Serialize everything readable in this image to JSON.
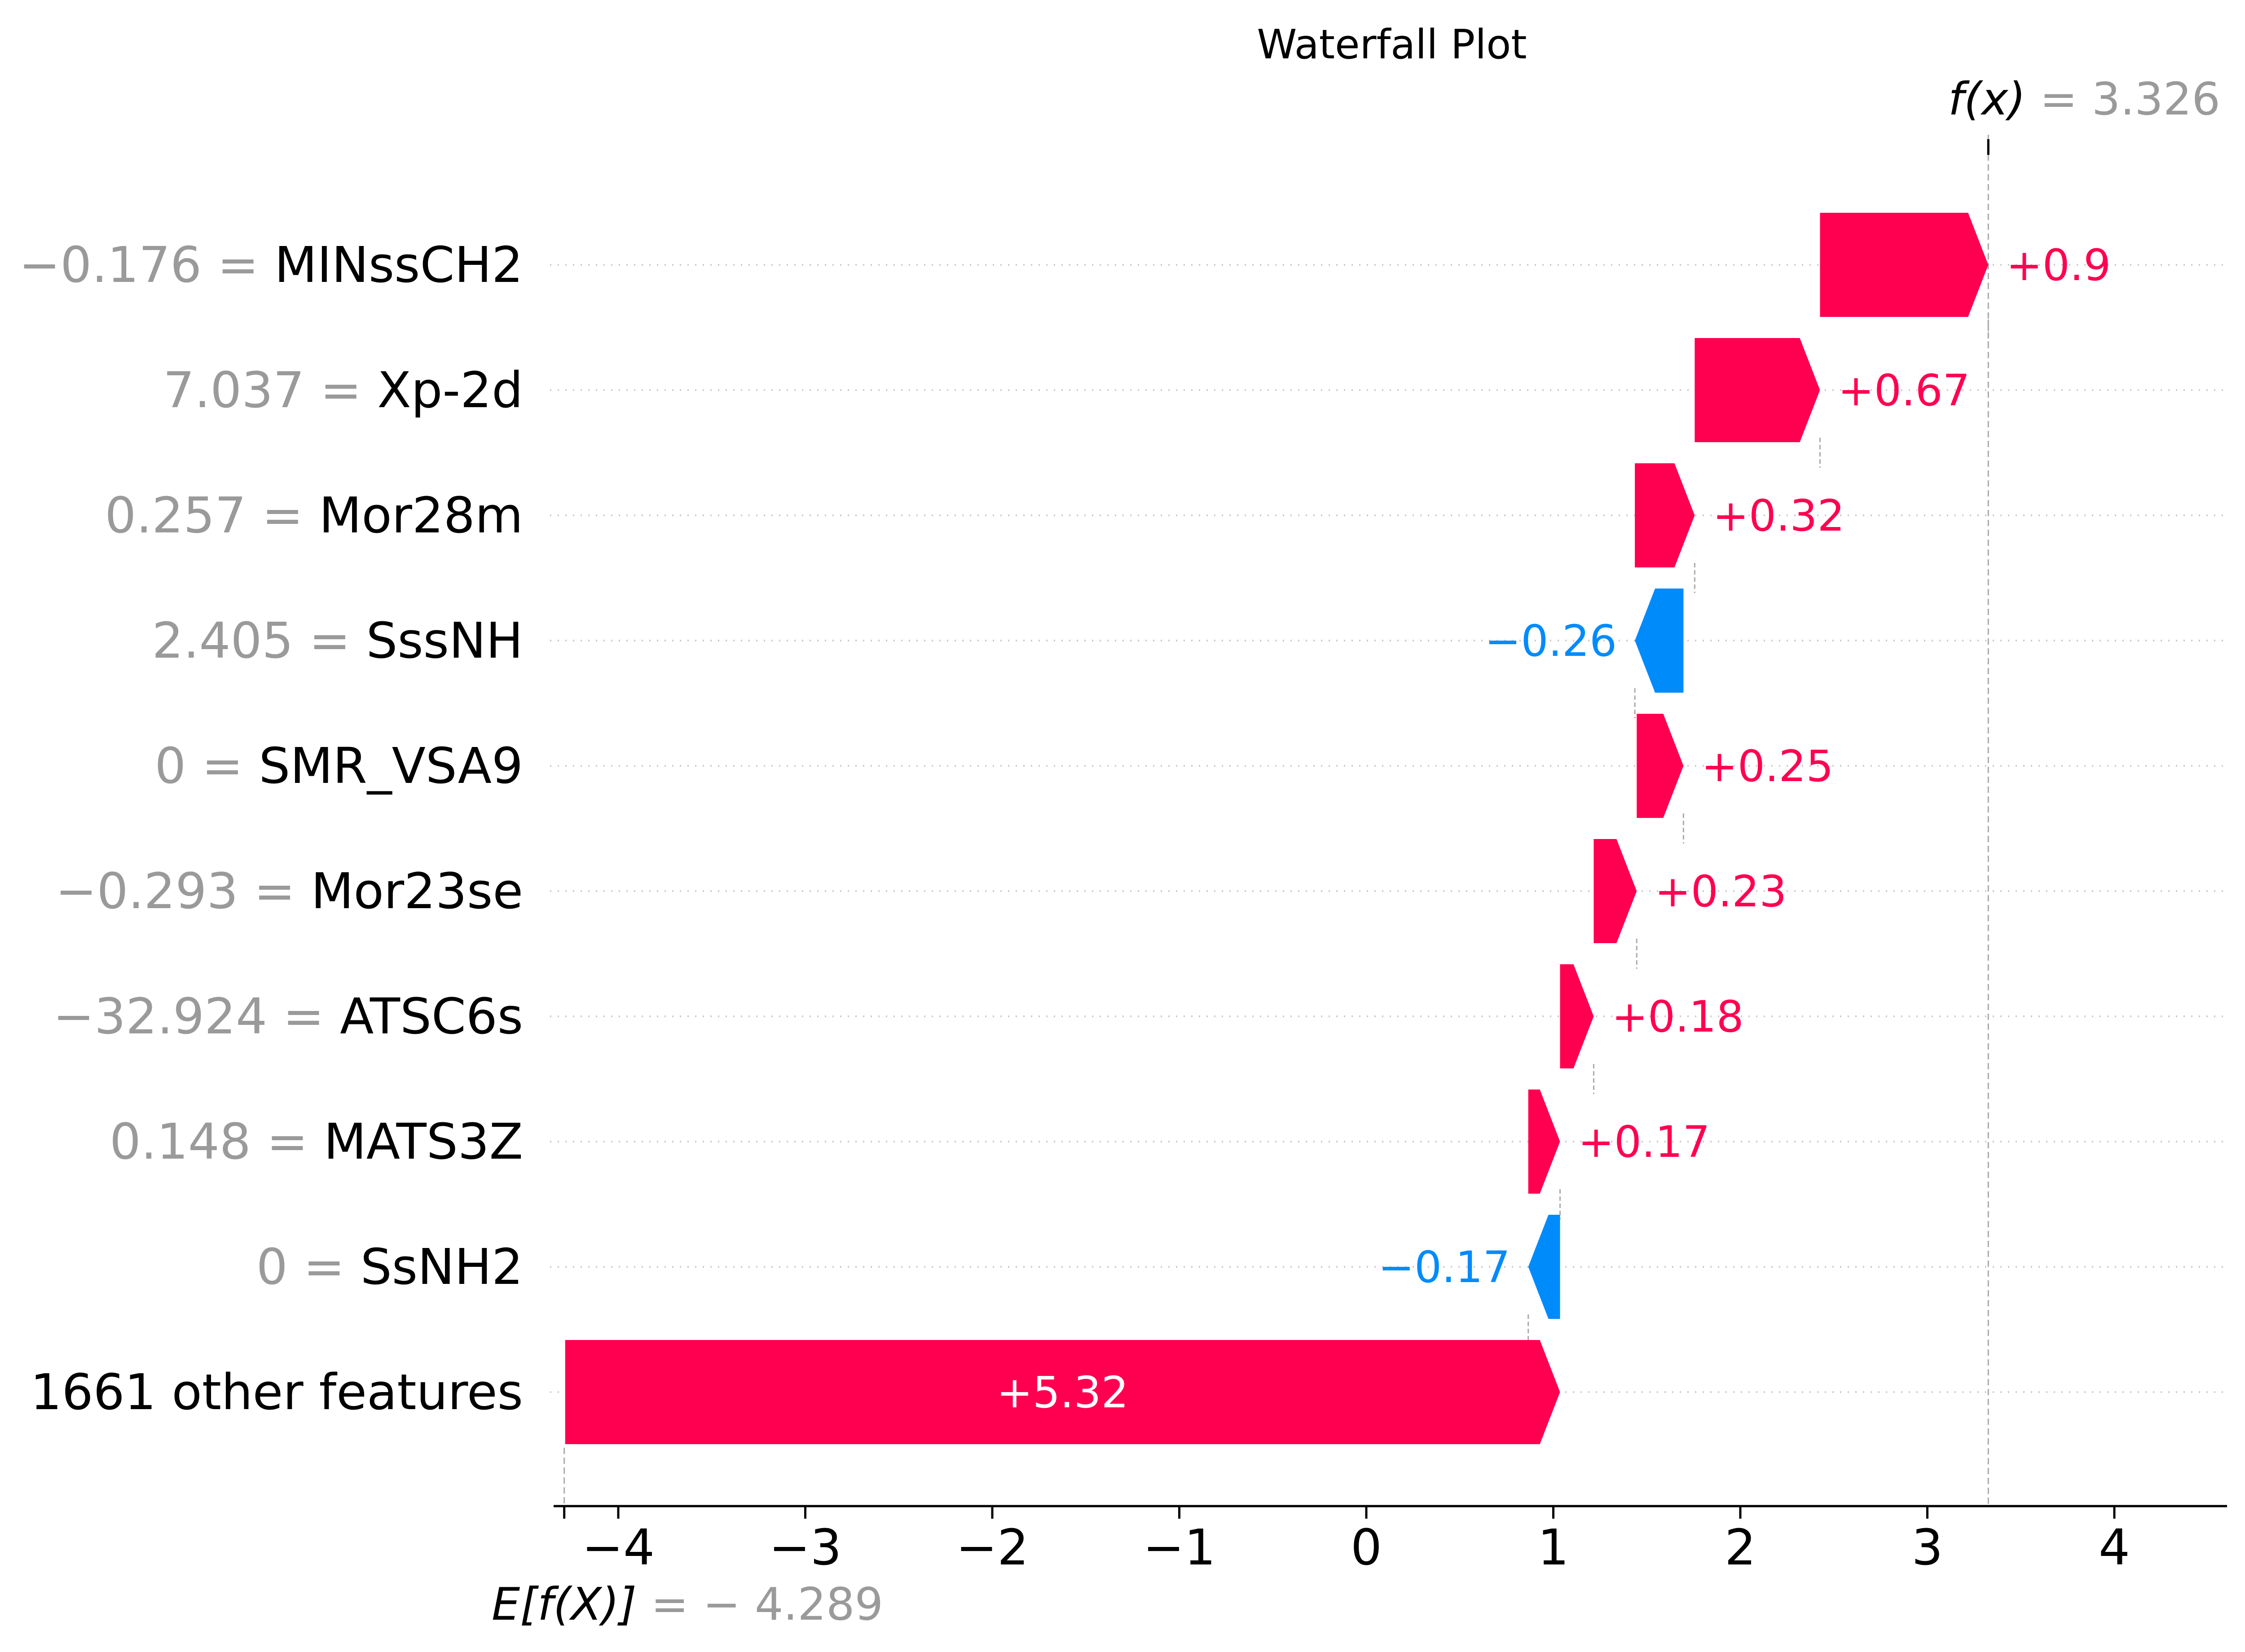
{
  "chart_data": {
    "type": "waterfall",
    "title": "Waterfall Plot",
    "base_value": -4.289,
    "output_value": 3.326,
    "base_label": "E[f(X)]",
    "base_value_text": "= − 4.289",
    "output_label": "f(x)",
    "output_value_text": "= 3.326",
    "xlim": [
      -4.3,
      4.6
    ],
    "xticks": [
      -4,
      -3,
      -2,
      -1,
      0,
      1,
      2,
      3,
      4
    ],
    "xtick_labels": [
      "−4",
      "−3",
      "−2",
      "−1",
      "0",
      "1",
      "2",
      "3",
      "4"
    ],
    "grid": "dotted horizontal",
    "colors": {
      "positive": "#ff0051",
      "negative": "#008bfb",
      "grey": "#9a9a9a"
    },
    "features": [
      {
        "name": "MINssCH2",
        "value_text": "−0.176 =",
        "contribution": 0.9,
        "label": "+0.9"
      },
      {
        "name": "Xp-2d",
        "value_text": "7.037 =",
        "contribution": 0.67,
        "label": "+0.67"
      },
      {
        "name": "Mor28m",
        "value_text": "0.257 =",
        "contribution": 0.32,
        "label": "+0.32"
      },
      {
        "name": "SssNH",
        "value_text": "2.405 =",
        "contribution": -0.26,
        "label": "−0.26"
      },
      {
        "name": "SMR_VSA9",
        "value_text": "0 =",
        "contribution": 0.25,
        "label": "+0.25"
      },
      {
        "name": "Mor23se",
        "value_text": "−0.293 =",
        "contribution": 0.23,
        "label": "+0.23"
      },
      {
        "name": "ATSC6s",
        "value_text": "−32.924 =",
        "contribution": 0.18,
        "label": "+0.18"
      },
      {
        "name": "MATS3Z",
        "value_text": "0.148 =",
        "contribution": 0.17,
        "label": "+0.17"
      },
      {
        "name": "SsNH2",
        "value_text": "0 =",
        "contribution": -0.17,
        "label": "−0.17"
      },
      {
        "name": "1661 other features",
        "value_text": "",
        "contribution": 5.32,
        "label": "+5.32"
      }
    ]
  }
}
